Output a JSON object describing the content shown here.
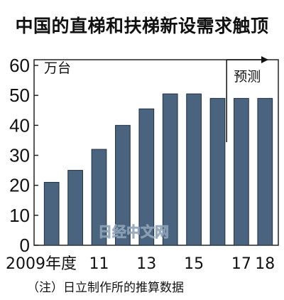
{
  "title": "中国的直梯和扶梯新设需求触顶",
  "note": "（注）日立制作所的推算数据",
  "watermark": "日经中文网",
  "chart_data": {
    "type": "bar",
    "categories": [
      "2009年度",
      "",
      "11",
      "",
      "13",
      "",
      "15",
      "",
      "17",
      "18"
    ],
    "values": [
      21,
      25,
      32,
      40,
      45.5,
      50.5,
      50.5,
      49,
      49,
      49
    ],
    "ylim": [
      0,
      60
    ],
    "yticks": [
      0,
      10,
      20,
      30,
      40,
      50,
      60
    ],
    "yunit": "万台",
    "forecast_label": "预测",
    "forecast_start_index": 8,
    "grid": false,
    "bar_color": "#4a6480",
    "bar_edge_color": "#1f2f42"
  }
}
